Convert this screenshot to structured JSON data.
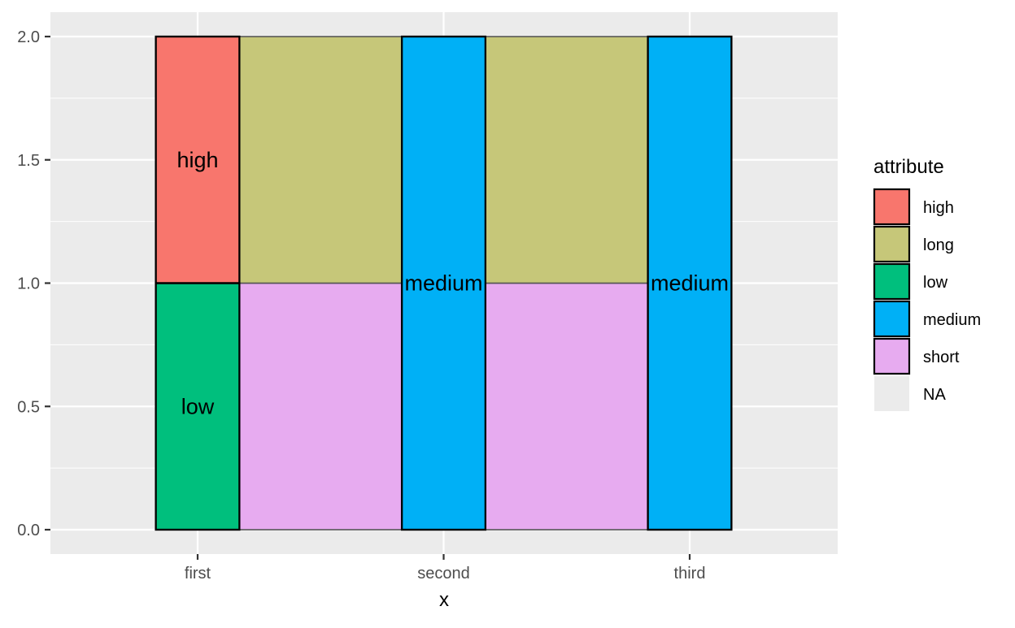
{
  "chart_data": {
    "type": "bar",
    "subtype": "stacked-variable-width",
    "xlabel": "x",
    "ylabel": "",
    "categories": [
      "first",
      "second",
      "third"
    ],
    "ylim": [
      0,
      2
    ],
    "yticks": [
      "0.0",
      "0.5",
      "1.0",
      "1.5",
      "2.0"
    ],
    "grid": true,
    "legend": {
      "title": "attribute",
      "placement": "right",
      "entries": [
        {
          "label": "high",
          "color": "#F8766D"
        },
        {
          "label": "long",
          "color": "#C6C779"
        },
        {
          "label": "low",
          "color": "#00BF7D"
        },
        {
          "label": "medium",
          "color": "#00B0F6"
        },
        {
          "label": "short",
          "color": "#E7ABF0"
        },
        {
          "label": "NA",
          "color": "#EBEBEB"
        }
      ]
    },
    "segments": [
      {
        "attribute": "low",
        "x_start": 0.83,
        "x_end": 1.17,
        "ymin": 0,
        "ymax": 1,
        "label": "low"
      },
      {
        "attribute": "high",
        "x_start": 0.83,
        "x_end": 1.17,
        "ymin": 1,
        "ymax": 2,
        "label": "high"
      },
      {
        "attribute": "short",
        "x_start": 1.17,
        "x_end": 1.83,
        "ymin": 0,
        "ymax": 1,
        "label": ""
      },
      {
        "attribute": "long",
        "x_start": 1.17,
        "x_end": 1.83,
        "ymin": 1,
        "ymax": 2,
        "label": ""
      },
      {
        "attribute": "medium",
        "x_start": 1.83,
        "x_end": 2.17,
        "ymin": 0,
        "ymax": 2,
        "label": "medium"
      },
      {
        "attribute": "short",
        "x_start": 2.17,
        "x_end": 2.83,
        "ymin": 0,
        "ymax": 1,
        "label": ""
      },
      {
        "attribute": "long",
        "x_start": 2.17,
        "x_end": 2.83,
        "ymin": 1,
        "ymax": 2,
        "label": ""
      },
      {
        "attribute": "medium",
        "x_start": 2.83,
        "x_end": 3.17,
        "ymin": 0,
        "ymax": 2,
        "label": "medium"
      }
    ]
  }
}
